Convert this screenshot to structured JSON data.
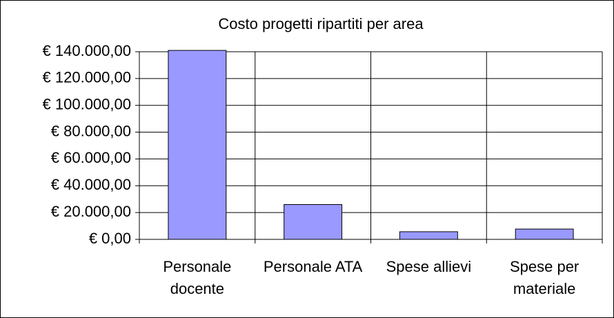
{
  "chart_data": {
    "type": "bar",
    "title": "Costo progetti ripartiti per area",
    "categories": [
      "Personale docente",
      "Personale ATA",
      "Spese allievi",
      "Spese per materiale"
    ],
    "values": [
      141000,
      26000,
      5700,
      7700
    ],
    "color": "#9999ff",
    "ylim": [
      0,
      140000
    ],
    "yticks": [
      {
        "value": 0,
        "label": "€ 0,00"
      },
      {
        "value": 20000,
        "label": "€ 20.000,00"
      },
      {
        "value": 40000,
        "label": "€ 40.000,00"
      },
      {
        "value": 60000,
        "label": "€ 60.000,00"
      },
      {
        "value": 80000,
        "label": "€ 80.000,00"
      },
      {
        "value": 100000,
        "label": "€ 100.000,00"
      },
      {
        "value": 120000,
        "label": "€ 120.000,00"
      },
      {
        "value": 140000,
        "label": "€ 140.000,00"
      }
    ],
    "grid": true
  }
}
